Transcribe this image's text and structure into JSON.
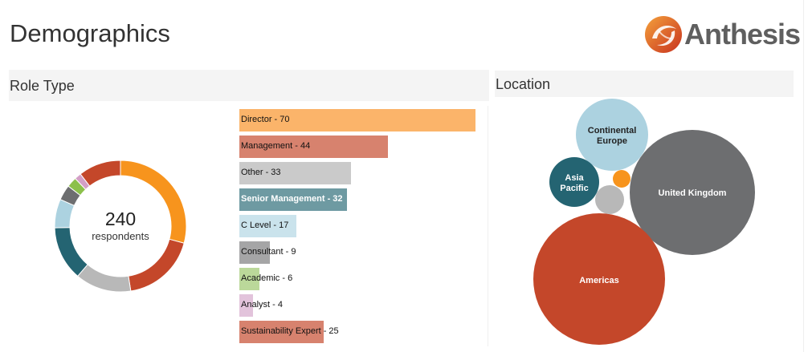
{
  "header": {
    "title": "Demographics",
    "logo_text": "Anthesis"
  },
  "role_type": {
    "title": "Role Type",
    "total": "240",
    "total_label": "respondents"
  },
  "location": {
    "title": "Location"
  },
  "colors": {
    "director": "#f7941d",
    "management": "#c4472a",
    "other": "#b8b8b8",
    "senior_management": "#246472",
    "c_level": "#acd2e0",
    "consultant": "#6d6e70",
    "academic": "#8cc04b",
    "analyst": "#d39fc6",
    "sustainability_expert": "#c4472a"
  },
  "chart_data": [
    {
      "type": "pie",
      "title": "Role Type",
      "subtype": "donut",
      "center_text": "240 respondents",
      "categories": [
        "Director",
        "Management",
        "Other",
        "Senior Management",
        "C Level",
        "Consultant",
        "Academic",
        "Analyst",
        "Sustainability Expert"
      ],
      "values": [
        70,
        44,
        33,
        32,
        17,
        9,
        6,
        4,
        25
      ],
      "colors": [
        "#f7941d",
        "#c4472a",
        "#b8b8b8",
        "#246472",
        "#acd2e0",
        "#6d6e70",
        "#8cc04b",
        "#d39fc6",
        "#c4472a"
      ]
    },
    {
      "type": "bar",
      "orientation": "horizontal",
      "title": "Role Type",
      "categories": [
        "Director",
        "Management",
        "Other",
        "Senior Management",
        "C Level",
        "Consultant",
        "Academic",
        "Analyst",
        "Sustainability Expert"
      ],
      "values": [
        70,
        44,
        33,
        32,
        17,
        9,
        6,
        4,
        25
      ],
      "labels": [
        "Director - 70",
        "Management - 44",
        "Other - 33",
        "Senior Management - 32",
        "C Level - 17",
        "Consultant - 9",
        "Academic - 6",
        "Analyst - 4",
        "Sustainability Expert - 25"
      ],
      "colors": [
        "#fbb46a",
        "#d7826e",
        "#cacaca",
        "#6e9aa2",
        "#cae3ec",
        "#a5a5a6",
        "#bbd89a",
        "#e2c3db",
        "#d7826e"
      ]
    },
    {
      "type": "scatter",
      "subtype": "packed-bubble",
      "title": "Location",
      "categories": [
        "United Kingdom",
        "Americas",
        "Continental Europe",
        "Asia Pacific",
        "Other (gray)",
        "Other (orange)"
      ],
      "labels": [
        "United Kingdom",
        "Americas",
        "Continental Europe",
        "Asia Pacific",
        "",
        ""
      ],
      "colors": [
        "#6d6e70",
        "#c4472a",
        "#acd2e0",
        "#246472",
        "#b8b8b8",
        "#f7941d"
      ],
      "relative_radius": [
        78,
        82,
        45,
        31,
        18,
        11
      ]
    }
  ],
  "bars": [
    {
      "label": "Director - 70",
      "value": 70,
      "color": "#fbb46a",
      "light": false
    },
    {
      "label": "Management - 44",
      "value": 44,
      "color": "#d7826e",
      "light": false
    },
    {
      "label": "Other - 33",
      "value": 33,
      "color": "#cacaca",
      "light": false
    },
    {
      "label": "Senior Management - 32",
      "value": 32,
      "color": "#6e9aa2",
      "light": true
    },
    {
      "label": "C Level - 17",
      "value": 17,
      "color": "#cae3ec",
      "light": false
    },
    {
      "label": "Consultant - 9",
      "value": 9,
      "color": "#a5a5a6",
      "light": false
    },
    {
      "label": "Academic - 6",
      "value": 6,
      "color": "#bbd89a",
      "light": false
    },
    {
      "label": "Analyst - 4",
      "value": 4,
      "color": "#e2c3db",
      "light": false
    },
    {
      "label": "Sustainability Expert - 25",
      "value": 25,
      "color": "#d7826e",
      "light": false
    }
  ],
  "bubbles": [
    {
      "label1": "Continental",
      "label2": "Europe",
      "color": "#acd2e0",
      "text_color": "#222222"
    },
    {
      "label1": "Asia",
      "label2": "Pacific",
      "color": "#246472",
      "text_color": "#ffffff"
    },
    {
      "label1": "United Kingdom",
      "label2": "",
      "color": "#6d6e70",
      "text_color": "#ffffff"
    },
    {
      "label1": "Americas",
      "label2": "",
      "color": "#c4472a",
      "text_color": "#ffffff"
    }
  ]
}
